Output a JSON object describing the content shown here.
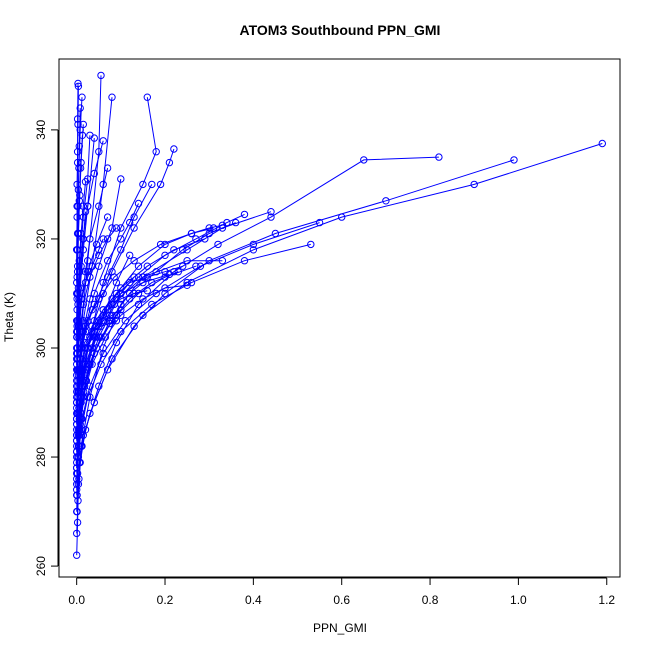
{
  "chart_data": {
    "type": "scatter",
    "title": "ATOM3 Southbound PPN_GMI",
    "xlabel": "PPN_GMI",
    "ylabel": "Theta (K)",
    "xlim": [
      -0.04,
      1.23
    ],
    "ylim": [
      258,
      353
    ],
    "x_ticks": [
      0.0,
      0.2,
      0.4,
      0.6,
      0.8,
      1.0,
      1.2
    ],
    "x_tick_labels": [
      "0.0",
      "0.2",
      "0.4",
      "0.6",
      "0.8",
      "1.0",
      "1.2"
    ],
    "y_ticks": [
      260,
      280,
      300,
      320,
      340
    ],
    "y_tick_labels": [
      "260",
      "280",
      "300",
      "320",
      "340"
    ],
    "grid": false,
    "legend": "none",
    "series_color": "#0000ff",
    "series": [
      {
        "x": [
          0.0,
          0.002,
          0.004,
          0.01,
          0.03,
          0.06,
          0.1,
          0.15,
          0.25,
          0.33,
          0.44
        ],
        "y": [
          262,
          268,
          275,
          282,
          291,
          300,
          308,
          313,
          318,
          322,
          325
        ]
      },
      {
        "x": [
          0.0,
          0.003,
          0.008,
          0.02,
          0.05,
          0.09,
          0.14,
          0.22,
          0.32,
          0.44,
          0.65,
          0.82
        ],
        "y": [
          266,
          272,
          279,
          285,
          293,
          301,
          308,
          314,
          319,
          324,
          334.5,
          335
        ]
      },
      {
        "x": [
          0.001,
          0.005,
          0.012,
          0.03,
          0.07,
          0.13,
          0.2,
          0.3,
          0.45,
          0.7,
          0.99
        ],
        "y": [
          270,
          276,
          282,
          288,
          296,
          304,
          310,
          316,
          321,
          327,
          334.5
        ]
      },
      {
        "x": [
          0.001,
          0.006,
          0.015,
          0.04,
          0.08,
          0.15,
          0.25,
          0.4,
          0.6,
          0.9,
          1.19
        ],
        "y": [
          273,
          279,
          284,
          290,
          298,
          306,
          312,
          318,
          324,
          330,
          337.5
        ]
      },
      {
        "x": [
          0.0,
          0.004,
          0.01,
          0.025,
          0.055,
          0.1,
          0.17,
          0.26,
          0.38,
          0.53
        ],
        "y": [
          275,
          280,
          285,
          291,
          297,
          303,
          308,
          312,
          316,
          319
        ]
      },
      {
        "x": [
          0.0,
          0.005,
          0.012,
          0.03,
          0.06,
          0.11,
          0.18,
          0.28,
          0.4,
          0.55
        ],
        "y": [
          277,
          282,
          287,
          293,
          299,
          305,
          310,
          315,
          319,
          323
        ]
      },
      {
        "x": [
          0.0,
          0.002,
          0.006,
          0.015,
          0.035,
          0.06,
          0.08
        ],
        "y": [
          280,
          288,
          296,
          305,
          315,
          330,
          346
        ]
      },
      {
        "x": [
          0.0,
          0.003,
          0.01,
          0.025,
          0.05,
          0.055
        ],
        "y": [
          283,
          292,
          303,
          316,
          336,
          350
        ]
      },
      {
        "x": [
          0.0,
          0.004,
          0.012,
          0.03,
          0.06,
          0.1,
          0.15,
          0.18,
          0.16
        ],
        "y": [
          278,
          285,
          293,
          302,
          312,
          322,
          330,
          336,
          346
        ]
      },
      {
        "x": [
          0.0,
          0.005,
          0.015,
          0.04,
          0.08,
          0.13,
          0.19,
          0.21,
          0.22
        ],
        "y": [
          281,
          288,
          296,
          305,
          314,
          322,
          330,
          334,
          336.5
        ]
      },
      {
        "x": [
          0.0,
          0.006,
          0.02,
          0.05,
          0.09,
          0.14,
          0.2,
          0.26,
          0.3,
          0.33
        ],
        "y": [
          284,
          290,
          297,
          304,
          310,
          315,
          319,
          321,
          322,
          322.5
        ]
      },
      {
        "x": [
          0.0,
          0.004,
          0.01,
          0.02,
          0.04,
          0.07,
          0.1,
          0.12,
          0.14
        ],
        "y": [
          286,
          292,
          298,
          304,
          310,
          316,
          320,
          323,
          326.5
        ]
      },
      {
        "x": [
          0.0,
          0.003,
          0.008,
          0.02,
          0.04,
          0.07,
          0.1,
          0.13,
          0.17
        ],
        "y": [
          288,
          293,
          298,
          303,
          308,
          313,
          318,
          324,
          330
        ]
      },
      {
        "x": [
          0.0,
          0.004,
          0.01,
          0.02,
          0.035,
          0.06,
          0.09,
          0.12
        ],
        "y": [
          276,
          282,
          288,
          294,
          300,
          306,
          312,
          317
        ]
      },
      {
        "x": [
          0.0,
          0.002,
          0.005,
          0.01,
          0.02,
          0.03,
          0.05,
          0.07
        ],
        "y": [
          290,
          296,
          302,
          308,
          314,
          320,
          326,
          333
        ]
      },
      {
        "x": [
          0.0,
          0.002,
          0.004,
          0.008,
          0.015,
          0.025,
          0.04
        ],
        "y": [
          292,
          298,
          304,
          311,
          318,
          326,
          338.5
        ]
      },
      {
        "x": [
          0.0,
          0.003,
          0.007,
          0.015,
          0.03,
          0.05,
          0.08,
          0.1
        ],
        "y": [
          285,
          291,
          297,
          303,
          309,
          315,
          322,
          331
        ]
      },
      {
        "x": [
          0.0,
          0.005,
          0.012,
          0.025,
          0.05,
          0.08,
          0.12,
          0.16,
          0.2,
          0.24
        ],
        "y": [
          282,
          288,
          294,
          300,
          305,
          309,
          312,
          313,
          314,
          315
        ]
      },
      {
        "x": [
          0.0,
          0.006,
          0.015,
          0.035,
          0.065,
          0.1,
          0.15,
          0.2,
          0.25
        ],
        "y": [
          279,
          285,
          291,
          297,
          302,
          306,
          309,
          311,
          311.5
        ]
      },
      {
        "x": [
          0.0,
          0.004,
          0.01,
          0.02,
          0.04,
          0.06,
          0.08,
          0.1
        ],
        "y": [
          287,
          292,
          296,
          300,
          303,
          305,
          306,
          307
        ]
      },
      {
        "x": [
          0.0,
          0.003,
          0.008,
          0.018,
          0.035,
          0.055,
          0.075,
          0.09
        ],
        "y": [
          289,
          294,
          298,
          301,
          303,
          304,
          304.5,
          305
        ]
      },
      {
        "x": [
          0.0,
          0.005,
          0.012,
          0.025,
          0.045,
          0.07,
          0.1,
          0.13,
          0.16
        ],
        "y": [
          283,
          289,
          295,
          300,
          304,
          307,
          309,
          310,
          310.5
        ]
      },
      {
        "x": [
          0.0,
          0.004,
          0.01,
          0.02,
          0.035,
          0.05,
          0.06
        ],
        "y": [
          291,
          296,
          300,
          304,
          307,
          309,
          310
        ]
      },
      {
        "x": [
          0.0,
          0.002,
          0.005,
          0.01,
          0.02,
          0.035,
          0.05,
          0.06
        ],
        "y": [
          295,
          300,
          305,
          309,
          312,
          315,
          318,
          320
        ]
      },
      {
        "x": [
          0.0,
          0.003,
          0.007,
          0.015,
          0.03,
          0.05,
          0.07,
          0.09
        ],
        "y": [
          293,
          298,
          303,
          308,
          313,
          317,
          320,
          322
        ]
      },
      {
        "x": [
          0.0,
          0.002,
          0.005,
          0.01,
          0.015,
          0.02
        ],
        "y": [
          297,
          303,
          309,
          315,
          320,
          325
        ]
      },
      {
        "x": [
          0.0,
          0.001,
          0.002,
          0.004,
          0.007,
          0.01,
          0.015
        ],
        "y": [
          300,
          307,
          314,
          321,
          328,
          334,
          341
        ]
      },
      {
        "x": [
          0.0,
          0.002,
          0.004,
          0.008,
          0.015,
          0.025,
          0.03
        ],
        "y": [
          299,
          305,
          311,
          317,
          324,
          331,
          339
        ]
      },
      {
        "x": [
          0.0,
          0.004,
          0.01,
          0.02,
          0.04,
          0.08,
          0.15,
          0.25,
          0.33
        ],
        "y": [
          278,
          284,
          290,
          296,
          302,
          308,
          313,
          316,
          316
        ]
      },
      {
        "x": [
          0.0,
          0.006,
          0.018,
          0.04,
          0.075,
          0.12,
          0.18,
          0.24,
          0.3,
          0.36
        ],
        "y": [
          281,
          287,
          293,
          299,
          305,
          310,
          314,
          318,
          321,
          323
        ]
      },
      {
        "x": [
          0.0,
          0.007,
          0.02,
          0.045,
          0.085,
          0.14,
          0.2,
          0.27,
          0.34,
          0.38
        ],
        "y": [
          284,
          290,
          296,
          302,
          308,
          313,
          317,
          320,
          323,
          324.5
        ]
      },
      {
        "x": [
          0.0,
          0.005,
          0.014,
          0.03,
          0.06,
          0.1,
          0.16,
          0.22,
          0.29
        ],
        "y": [
          287,
          292,
          297,
          302,
          307,
          311,
          315,
          318,
          320
        ]
      },
      {
        "x": [
          0.0,
          0.004,
          0.011,
          0.025,
          0.05,
          0.085,
          0.13,
          0.19,
          0.26,
          0.31
        ],
        "y": [
          290,
          295,
          300,
          305,
          309,
          313,
          316,
          319,
          321,
          322
        ]
      },
      {
        "x": [
          0.0,
          0.003,
          0.01,
          0.022,
          0.045,
          0.08,
          0.12,
          0.17,
          0.23
        ],
        "y": [
          273,
          280,
          287,
          294,
          300,
          305,
          309,
          312,
          314
        ]
      },
      {
        "x": [
          0.0,
          0.002,
          0.006,
          0.014,
          0.03,
          0.055,
          0.09,
          0.14,
          0.2,
          0.27
        ],
        "y": [
          270,
          277,
          284,
          291,
          297,
          302,
          306,
          310,
          313,
          315
        ]
      },
      {
        "x": [
          0.0,
          0.003,
          0.008,
          0.018,
          0.035,
          0.06,
          0.1,
          0.15,
          0.21
        ],
        "y": [
          286,
          291,
          296,
          300,
          304,
          307,
          310,
          312,
          313.5
        ]
      },
      {
        "x": [
          0.0,
          0.002,
          0.005,
          0.012,
          0.025,
          0.045,
          0.07
        ],
        "y": [
          294,
          299,
          304,
          309,
          314,
          319,
          324
        ]
      },
      {
        "x": [
          0.0,
          0.001,
          0.003,
          0.007,
          0.014,
          0.025,
          0.04,
          0.06
        ],
        "y": [
          296,
          302,
          308,
          314,
          320,
          326,
          332,
          338
        ]
      },
      {
        "x": [
          0.0,
          0.001,
          0.002,
          0.003,
          0.005,
          0.008,
          0.012
        ],
        "y": [
          302,
          310,
          318,
          326,
          333,
          340,
          346
        ]
      },
      {
        "x": [
          0.0,
          0.001,
          0.002,
          0.004,
          0.006,
          0.008
        ],
        "y": [
          305,
          313,
          321,
          329,
          337,
          344
        ]
      },
      {
        "x": [
          0.0,
          0.0005,
          0.001,
          0.002,
          0.003,
          0.004
        ],
        "y": [
          310,
          318,
          326,
          334,
          341,
          348
        ]
      },
      {
        "x": [
          0.0,
          0.001,
          0.002,
          0.004,
          0.006,
          0.009,
          0.013
        ],
        "y": [
          303,
          309,
          315,
          321,
          327,
          333,
          339
        ]
      },
      {
        "x": [
          0.0,
          0.0,
          0.001,
          0.001,
          0.002,
          0.002,
          0.003
        ],
        "y": [
          312,
          318,
          324,
          330,
          336,
          342,
          348.5
        ]
      },
      {
        "x": [
          0.0,
          0.001,
          0.003,
          0.006,
          0.01,
          0.015,
          0.02
        ],
        "y": [
          298,
          304,
          310,
          316,
          321,
          326,
          330.5
        ]
      },
      {
        "x": [
          0.0,
          0.003,
          0.008,
          0.016,
          0.03,
          0.05,
          0.075,
          0.1,
          0.13
        ],
        "y": [
          274,
          280,
          286,
          292,
          297,
          302,
          306,
          310,
          313
        ]
      }
    ]
  }
}
